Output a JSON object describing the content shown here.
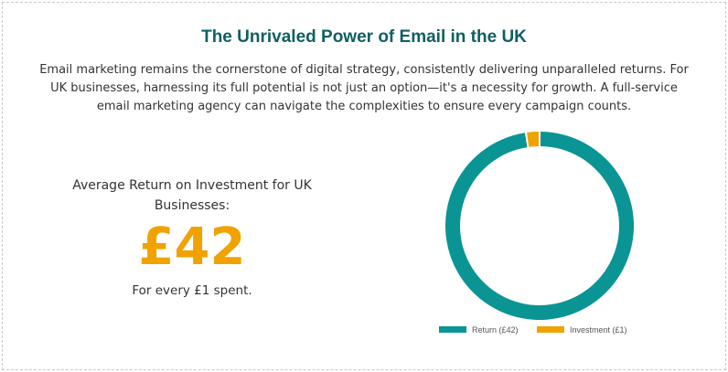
{
  "colors": {
    "title": "#0f5f63",
    "return": "#0b9494",
    "investment": "#f0a200"
  },
  "heading": {
    "title": "The Unrivaled Power of Email in the UK",
    "intro_line1": "Email marketing remains the cornerstone of digital strategy, consistently delivering unparalleled returns. For",
    "intro_line2": "UK businesses, harnessing its full potential is not just an option—it's a necessity for growth. A full-service",
    "intro_line3": "email marketing agency can navigate the complexities to ensure every campaign counts."
  },
  "stat": {
    "label_line1": "Average Return on Investment for UK",
    "label_line2": "Businesses:",
    "value": "£42",
    "sub": "For every £1 spent."
  },
  "chart_data": {
    "type": "pie",
    "donut": true,
    "categories": [
      "Return (£42)",
      "Investment (£1)"
    ],
    "values": [
      42,
      1
    ],
    "colors": [
      "#0b9494",
      "#f0a200"
    ],
    "legend": "bottom"
  }
}
